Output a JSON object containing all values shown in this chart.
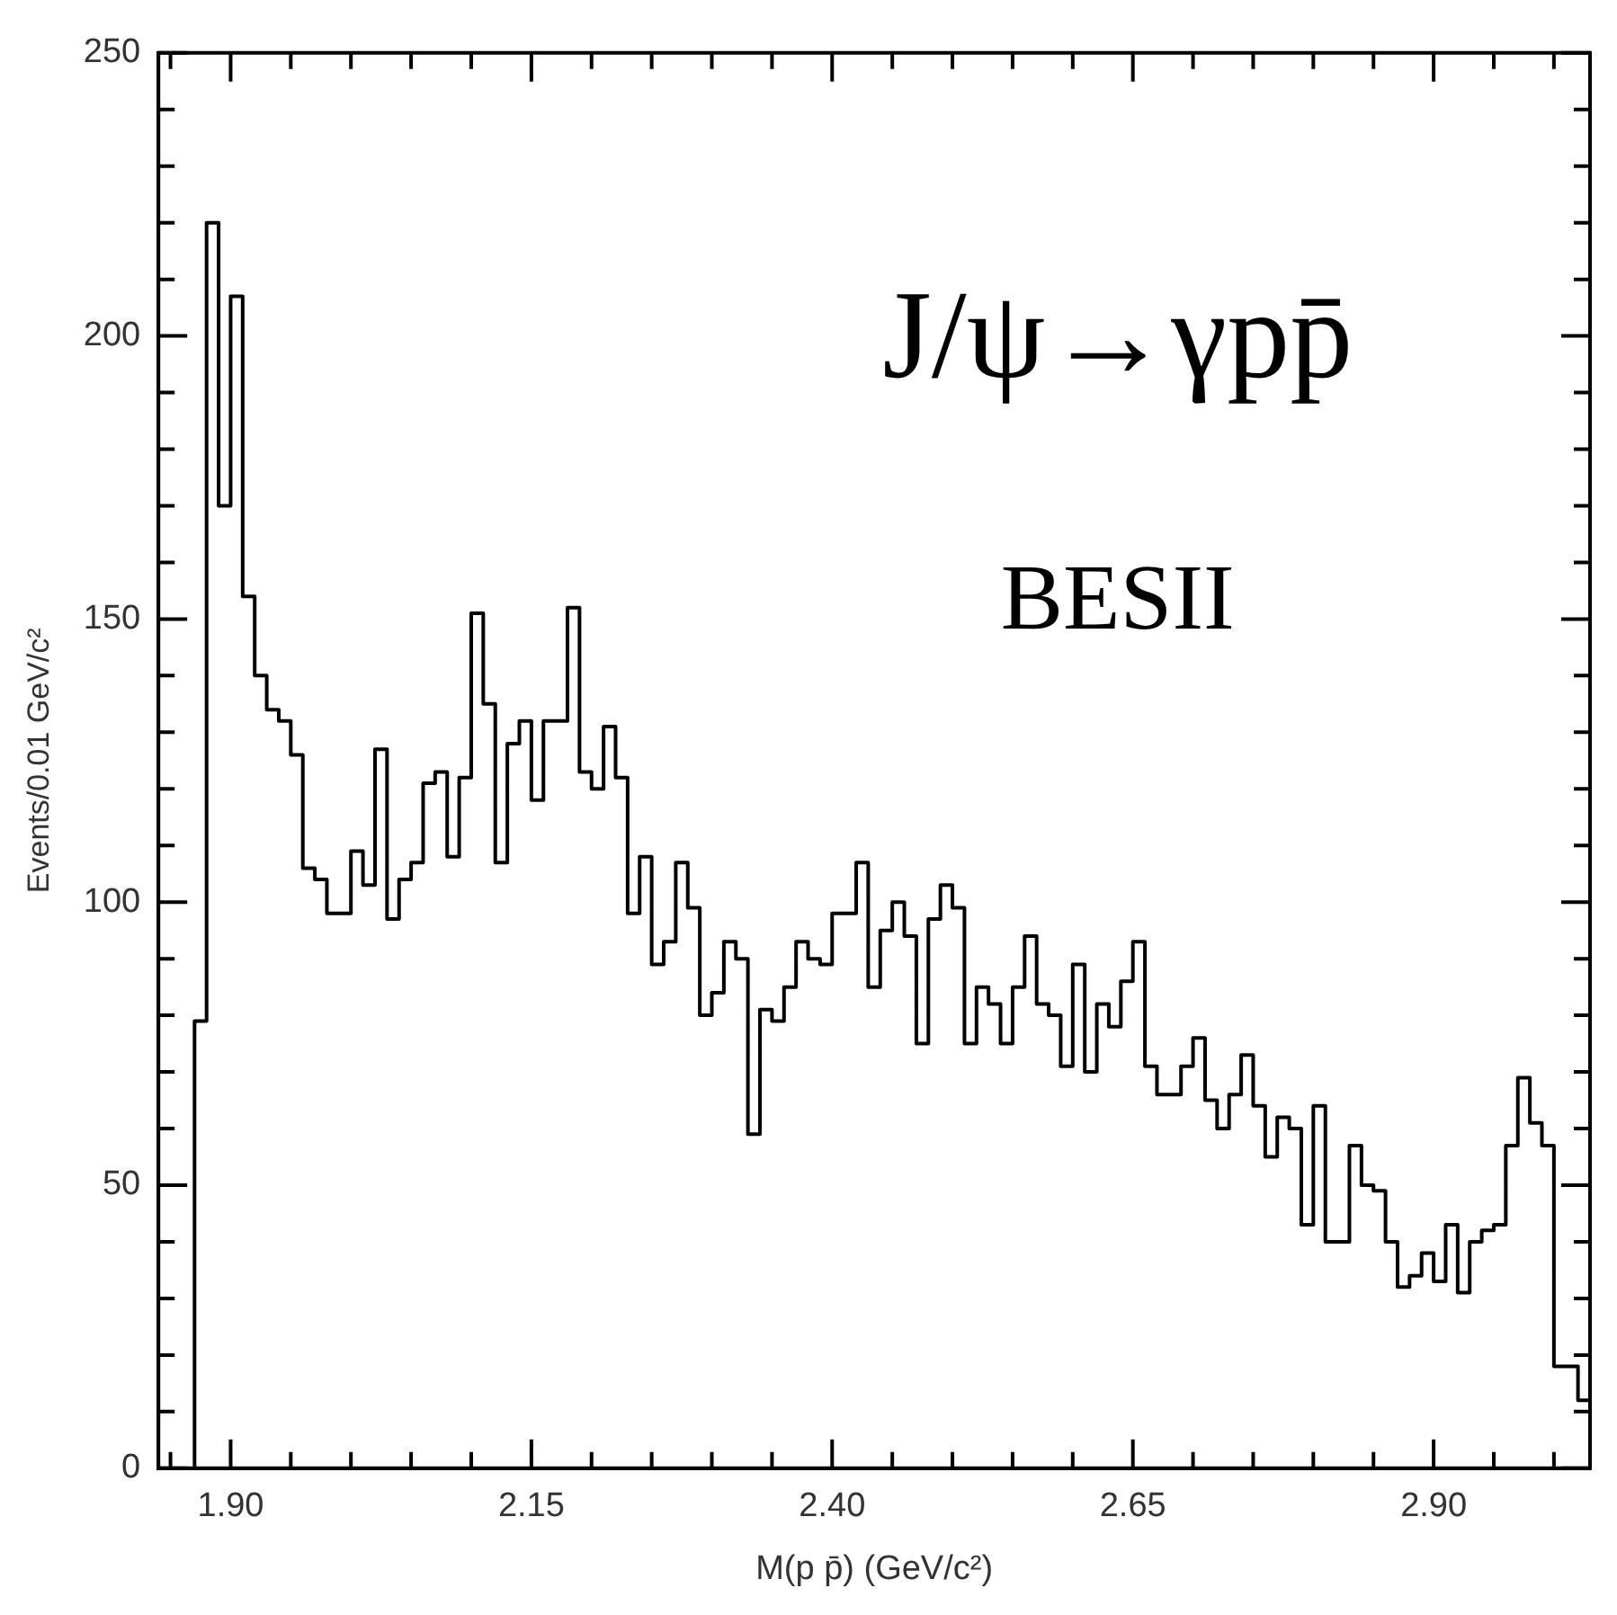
{
  "chart_data": {
    "type": "histogram",
    "xlabel": "M(p p̄) (GeV/c²)",
    "ylabel": "Events/0.01 GeV/c²",
    "color": "#000000",
    "annotations": [
      "J/ψ→γpp̄",
      "BESII"
    ],
    "bins": [
      1.87,
      1.88,
      1.89,
      1.9,
      1.91,
      1.92,
      1.93,
      1.94,
      1.95,
      1.96,
      1.97,
      1.98,
      1.99,
      2.0,
      2.01,
      2.02,
      2.03,
      2.04,
      2.05,
      2.06,
      2.07,
      2.08,
      2.09,
      2.1,
      2.11,
      2.12,
      2.13,
      2.14,
      2.15,
      2.16,
      2.17,
      2.18,
      2.19,
      2.2,
      2.21,
      2.22,
      2.23,
      2.24,
      2.25,
      2.26,
      2.27,
      2.28,
      2.29,
      2.3,
      2.31,
      2.32,
      2.33,
      2.34,
      2.35,
      2.36,
      2.37,
      2.38,
      2.39,
      2.4,
      2.41,
      2.42,
      2.43,
      2.44,
      2.45,
      2.46,
      2.47,
      2.48,
      2.49,
      2.5,
      2.51,
      2.52,
      2.53,
      2.54,
      2.55,
      2.56,
      2.57,
      2.58,
      2.59,
      2.6,
      2.61,
      2.62,
      2.63,
      2.64,
      2.65,
      2.66,
      2.67,
      2.68,
      2.69,
      2.7,
      2.71,
      2.72,
      2.73,
      2.74,
      2.75,
      2.76,
      2.77,
      2.78,
      2.79,
      2.8,
      2.81,
      2.82,
      2.83,
      2.84,
      2.85,
      2.86,
      2.87,
      2.88,
      2.89,
      2.9,
      2.91,
      2.92,
      2.93,
      2.94,
      2.95,
      2.96,
      2.97,
      2.98,
      2.99,
      3.0,
      3.01,
      3.02,
      3.03
    ],
    "values": [
      79,
      220,
      170,
      207,
      154,
      140,
      134,
      132,
      126,
      106,
      104,
      98,
      98,
      109,
      103,
      127,
      97,
      104,
      107,
      121,
      123,
      108,
      122,
      151,
      135,
      107,
      128,
      132,
      118,
      132,
      132,
      152,
      123,
      120,
      131,
      122,
      98,
      108,
      89,
      93,
      107,
      99,
      80,
      84,
      93,
      90,
      59,
      81,
      79,
      85,
      93,
      90,
      89,
      98,
      98,
      107,
      85,
      95,
      100,
      94,
      75,
      97,
      103,
      99,
      75,
      85,
      82,
      75,
      85,
      94,
      82,
      80,
      71,
      89,
      70,
      82,
      78,
      86,
      93,
      71,
      66,
      66,
      71,
      76,
      65,
      60,
      66,
      73,
      64,
      55,
      62,
      60,
      43,
      64,
      40,
      40,
      57,
      50,
      49,
      40,
      32,
      34,
      38,
      33,
      43,
      31,
      40,
      42,
      43,
      57,
      69,
      61,
      57,
      18,
      18,
      12
    ],
    "xlim": [
      1.84,
      3.03
    ],
    "xticks": [
      {
        "value": 1.85,
        "label": null
      },
      {
        "value": 1.9,
        "label": "1.90"
      },
      {
        "value": 1.95,
        "label": null
      },
      {
        "value": 2.0,
        "label": null
      },
      {
        "value": 2.05,
        "label": null
      },
      {
        "value": 2.1,
        "label": null
      },
      {
        "value": 2.15,
        "label": "2.15"
      },
      {
        "value": 2.2,
        "label": null
      },
      {
        "value": 2.25,
        "label": null
      },
      {
        "value": 2.3,
        "label": null
      },
      {
        "value": 2.35,
        "label": null
      },
      {
        "value": 2.4,
        "label": "2.40"
      },
      {
        "value": 2.45,
        "label": null
      },
      {
        "value": 2.5,
        "label": null
      },
      {
        "value": 2.55,
        "label": null
      },
      {
        "value": 2.6,
        "label": null
      },
      {
        "value": 2.65,
        "label": "2.65"
      },
      {
        "value": 2.7,
        "label": null
      },
      {
        "value": 2.75,
        "label": null
      },
      {
        "value": 2.8,
        "label": null
      },
      {
        "value": 2.85,
        "label": null
      },
      {
        "value": 2.9,
        "label": "2.90"
      },
      {
        "value": 2.95,
        "label": null
      },
      {
        "value": 3.0,
        "label": null
      }
    ],
    "ylim": [
      0,
      250
    ],
    "yticks": [
      0,
      {
        "value": 10,
        "label": null
      },
      {
        "value": 20,
        "label": null
      },
      {
        "value": 30,
        "label": null
      },
      {
        "value": 40,
        "label": null
      },
      50,
      {
        "value": 60,
        "label": null
      },
      {
        "value": 70,
        "label": null
      },
      {
        "value": 80,
        "label": null
      },
      {
        "value": 90,
        "label": null
      },
      100,
      {
        "value": 110,
        "label": null
      },
      {
        "value": 120,
        "label": null
      },
      {
        "value": 130,
        "label": null
      },
      {
        "value": 140,
        "label": null
      },
      150,
      {
        "value": 160,
        "label": null
      },
      {
        "value": 170,
        "label": null
      },
      {
        "value": 180,
        "label": null
      },
      {
        "value": 190,
        "label": null
      },
      200,
      {
        "value": 210,
        "label": null
      },
      {
        "value": 220,
        "label": null
      },
      {
        "value": 230,
        "label": null
      },
      {
        "value": 240,
        "label": null
      },
      250
    ]
  }
}
